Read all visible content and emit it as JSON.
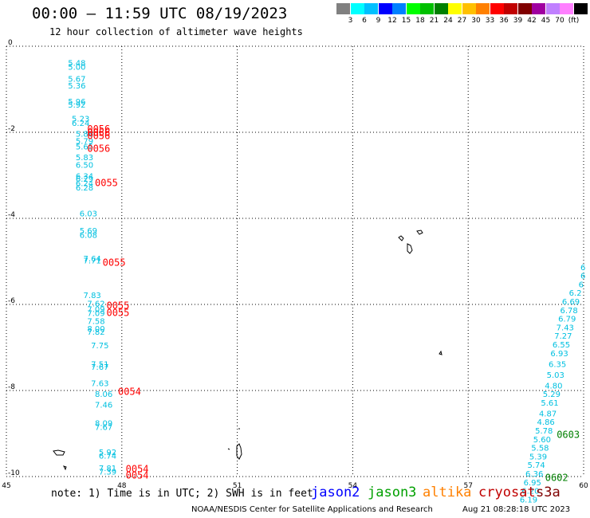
{
  "header": {
    "title": "00:00 – 11:59 UTC 08/19/2023",
    "subtitle": "12 hour collection of altimeter wave heights"
  },
  "colorbar": {
    "colors": [
      "#808080",
      "#00ffff",
      "#00c0ff",
      "#0000ff",
      "#0080ff",
      "#00ff00",
      "#00c000",
      "#008000",
      "#ffff00",
      "#ffc000",
      "#ff8000",
      "#ff0000",
      "#c00000",
      "#800000",
      "#a000a0",
      "#c080ff",
      "#ff80ff",
      "#000000"
    ],
    "labels": [
      "3",
      "6",
      "9",
      "12",
      "15",
      "18",
      "21",
      "24",
      "27",
      "30",
      "33",
      "36",
      "39",
      "42",
      "45",
      "70",
      "(ft)"
    ]
  },
  "footer": {
    "note": "note: 1) Time is in UTC; 2) SWH is in feet",
    "satellites": [
      {
        "name": "jason2",
        "color": "#0000ff"
      },
      {
        "name": "jason3",
        "color": "#00a000"
      },
      {
        "name": "altika",
        "color": "#ff8000"
      },
      {
        "name": "cryosat",
        "color": "#c00000"
      },
      {
        "name": "s3a",
        "color": "#800000"
      }
    ],
    "credit": "NOAA/NESDIS Center for Satellite Applications and Research",
    "timestamp": "Aug 21 08:28:18 UTC 2023"
  },
  "chart_data": {
    "type": "scatter",
    "x_ticks": [
      "45",
      "48",
      "51",
      "54",
      "57",
      "60"
    ],
    "y_ticks": [
      "0",
      "-2",
      "-4",
      "-6",
      "-8",
      "-10"
    ],
    "xlim": [
      45,
      60
    ],
    "ylim": [
      -10,
      0
    ],
    "grid": "dotted",
    "colors": {
      "swh": "#00c0e0",
      "time": "#ff0000",
      "time_alt": "#008000"
    },
    "swh_track_west": [
      {
        "lon": 46.6,
        "lat": -0.45,
        "v": "5.48"
      },
      {
        "lon": 46.6,
        "lat": -0.55,
        "v": "5.00"
      },
      {
        "lon": 46.6,
        "lat": -0.82,
        "v": "5.67"
      },
      {
        "lon": 46.6,
        "lat": -0.98,
        "v": "5.36"
      },
      {
        "lon": 46.6,
        "lat": -1.35,
        "v": "5.96"
      },
      {
        "lon": 46.6,
        "lat": -1.43,
        "v": "5.92"
      },
      {
        "lon": 46.7,
        "lat": -1.75,
        "v": "5.23"
      },
      {
        "lon": 46.7,
        "lat": -1.85,
        "v": "6.24"
      },
      {
        "lon": 46.8,
        "lat": -2.1,
        "v": "5.86"
      },
      {
        "lon": 46.8,
        "lat": -2.27,
        "v": "5.79"
      },
      {
        "lon": 46.8,
        "lat": -2.4,
        "v": "5.65"
      },
      {
        "lon": 46.8,
        "lat": -2.65,
        "v": "5.83"
      },
      {
        "lon": 46.8,
        "lat": -2.82,
        "v": "6.50"
      },
      {
        "lon": 46.8,
        "lat": -3.08,
        "v": "6.34"
      },
      {
        "lon": 46.8,
        "lat": -3.15,
        "v": "6.29"
      },
      {
        "lon": 46.8,
        "lat": -3.25,
        "v": "6.24"
      },
      {
        "lon": 46.8,
        "lat": -3.35,
        "v": "6.28"
      },
      {
        "lon": 46.9,
        "lat": -3.95,
        "v": "6.03"
      },
      {
        "lon": 46.9,
        "lat": -4.35,
        "v": "5.69"
      },
      {
        "lon": 46.9,
        "lat": -4.45,
        "v": "6.08"
      },
      {
        "lon": 47.0,
        "lat": -5.0,
        "v": "7.64"
      },
      {
        "lon": 47.0,
        "lat": -5.05,
        "v": "7.71"
      },
      {
        "lon": 47.0,
        "lat": -5.85,
        "v": "7.83"
      },
      {
        "lon": 47.1,
        "lat": -6.05,
        "v": "7.62"
      },
      {
        "lon": 47.1,
        "lat": -6.18,
        "v": "7.09"
      },
      {
        "lon": 47.1,
        "lat": -6.27,
        "v": "7.09"
      },
      {
        "lon": 47.1,
        "lat": -6.45,
        "v": "7.58"
      },
      {
        "lon": 47.1,
        "lat": -6.63,
        "v": "8.00"
      },
      {
        "lon": 47.1,
        "lat": -6.7,
        "v": "7.82"
      },
      {
        "lon": 47.2,
        "lat": -7.02,
        "v": "7.75"
      },
      {
        "lon": 47.2,
        "lat": -7.45,
        "v": "7.51"
      },
      {
        "lon": 47.2,
        "lat": -7.52,
        "v": "7.67"
      },
      {
        "lon": 47.2,
        "lat": -7.9,
        "v": "7.63"
      },
      {
        "lon": 47.3,
        "lat": -8.15,
        "v": "8.06"
      },
      {
        "lon": 47.3,
        "lat": -8.4,
        "v": "7.46"
      },
      {
        "lon": 47.3,
        "lat": -8.82,
        "v": "8.09"
      },
      {
        "lon": 47.3,
        "lat": -8.92,
        "v": "7.67"
      },
      {
        "lon": 47.4,
        "lat": -9.5,
        "v": "5.92"
      },
      {
        "lon": 47.4,
        "lat": -9.58,
        "v": "6.74"
      },
      {
        "lon": 47.4,
        "lat": -9.87,
        "v": "7.81"
      },
      {
        "lon": 47.4,
        "lat": -9.95,
        "v": "7.39"
      }
    ],
    "swh_track_east": [
      {
        "lon": 60.05,
        "lat": -5.2,
        "v": "6"
      },
      {
        "lon": 60.05,
        "lat": -5.4,
        "v": "6"
      },
      {
        "lon": 60.0,
        "lat": -5.6,
        "v": "6"
      },
      {
        "lon": 59.95,
        "lat": -5.8,
        "v": "6.2"
      },
      {
        "lon": 59.9,
        "lat": -6.0,
        "v": "6.69"
      },
      {
        "lon": 59.85,
        "lat": -6.2,
        "v": "6.78"
      },
      {
        "lon": 59.8,
        "lat": -6.4,
        "v": "6.79"
      },
      {
        "lon": 59.75,
        "lat": -6.6,
        "v": "7.43"
      },
      {
        "lon": 59.7,
        "lat": -6.8,
        "v": "7.27"
      },
      {
        "lon": 59.65,
        "lat": -7.0,
        "v": "6.55"
      },
      {
        "lon": 59.6,
        "lat": -7.2,
        "v": "6.93"
      },
      {
        "lon": 59.55,
        "lat": -7.45,
        "v": "6.35"
      },
      {
        "lon": 59.5,
        "lat": -7.7,
        "v": "5.03"
      },
      {
        "lon": 59.45,
        "lat": -7.95,
        "v": "4.80"
      },
      {
        "lon": 59.4,
        "lat": -8.15,
        "v": "5.29"
      },
      {
        "lon": 59.35,
        "lat": -8.35,
        "v": "5.61"
      },
      {
        "lon": 59.3,
        "lat": -8.6,
        "v": "4.87"
      },
      {
        "lon": 59.25,
        "lat": -8.8,
        "v": "4.86"
      },
      {
        "lon": 59.2,
        "lat": -9.0,
        "v": "5.78"
      },
      {
        "lon": 59.15,
        "lat": -9.2,
        "v": "5.60"
      },
      {
        "lon": 59.1,
        "lat": -9.4,
        "v": "5.58"
      },
      {
        "lon": 59.05,
        "lat": -9.6,
        "v": "5.39"
      },
      {
        "lon": 59.0,
        "lat": -9.8,
        "v": "5.74"
      },
      {
        "lon": 58.95,
        "lat": -10.0,
        "v": "6.36"
      },
      {
        "lon": 58.9,
        "lat": -10.2,
        "v": "6.95"
      },
      {
        "lon": 58.85,
        "lat": -10.4,
        "v": "6.20"
      },
      {
        "lon": 58.8,
        "lat": -10.6,
        "v": "6.19"
      }
    ],
    "time_labels": [
      {
        "lon": 47.1,
        "lat": -2.0,
        "v": "0056",
        "c": "time"
      },
      {
        "lon": 47.1,
        "lat": -2.08,
        "v": "0056",
        "c": "time"
      },
      {
        "lon": 47.1,
        "lat": -2.16,
        "v": "0056",
        "c": "time"
      },
      {
        "lon": 47.1,
        "lat": -2.45,
        "v": "0056",
        "c": "time"
      },
      {
        "lon": 47.3,
        "lat": -3.25,
        "v": "0055",
        "c": "time"
      },
      {
        "lon": 47.5,
        "lat": -5.1,
        "v": "0055",
        "c": "time"
      },
      {
        "lon": 47.6,
        "lat": -6.1,
        "v": "0055",
        "c": "time"
      },
      {
        "lon": 47.6,
        "lat": -6.27,
        "v": "0055",
        "c": "time"
      },
      {
        "lon": 47.9,
        "lat": -8.1,
        "v": "0054",
        "c": "time"
      },
      {
        "lon": 48.1,
        "lat": -9.9,
        "v": "0054",
        "c": "time"
      },
      {
        "lon": 48.1,
        "lat": -10.05,
        "v": "0054",
        "c": "time"
      },
      {
        "lon": 59.3,
        "lat": -9.1,
        "v": "0603",
        "c": "time_alt"
      },
      {
        "lon": 59.0,
        "lat": -10.1,
        "v": "0602",
        "c": "time_alt"
      }
    ]
  }
}
